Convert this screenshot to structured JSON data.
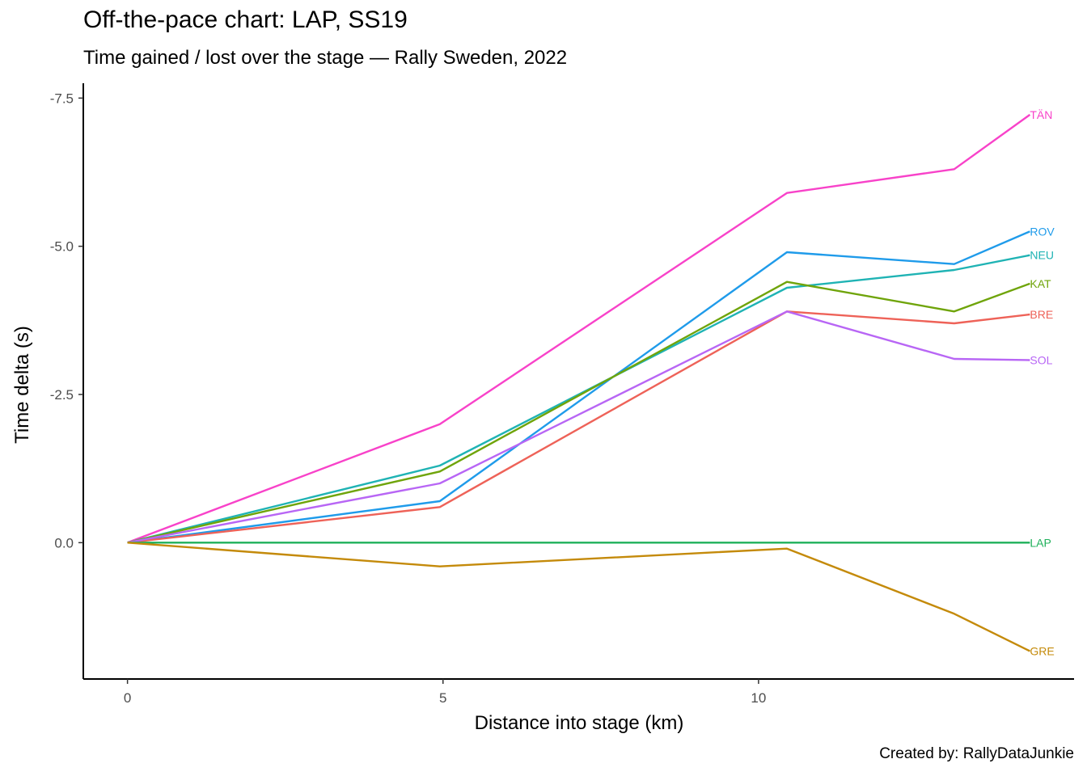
{
  "chart_data": {
    "type": "line",
    "title": "Off-the-pace chart: LAP, SS19",
    "subtitle": "Time gained / lost over the stage — Rally Sweden, 2022",
    "caption": "Created by: RallyDataJunkie",
    "xlabel": "Distance into stage (km)",
    "ylabel": "Time delta (s)",
    "x_ticks": [
      0,
      5,
      10
    ],
    "x_tick_labels": [
      "0",
      "5",
      "10"
    ],
    "y_ticks": [
      -7.5,
      -5.0,
      -2.5,
      0.0
    ],
    "y_tick_labels": [
      "-7.5",
      "-5.0",
      "-2.5",
      "0.0"
    ],
    "y_reversed": true,
    "xlim": [
      -0.7,
      15.0
    ],
    "ylim": [
      -7.75,
      2.3
    ],
    "grid": false,
    "legend": "end-of-line labels",
    "x": [
      0,
      4.95,
      10.45,
      13.1,
      14.3
    ],
    "series": [
      {
        "name": "TÄN",
        "color": "#F842C9",
        "values": [
          0,
          -2.0,
          -5.9,
          -6.3,
          -7.22
        ]
      },
      {
        "name": "ROV",
        "color": "#1F9BEA",
        "values": [
          0,
          -0.7,
          -4.9,
          -4.7,
          -5.25
        ]
      },
      {
        "name": "NEU",
        "color": "#1FB3B4",
        "values": [
          0,
          -1.3,
          -4.3,
          -4.6,
          -4.85
        ]
      },
      {
        "name": "KAT",
        "color": "#6FA40A",
        "values": [
          0,
          -1.2,
          -4.4,
          -3.9,
          -4.37
        ]
      },
      {
        "name": "BRE",
        "color": "#EE6258",
        "values": [
          0,
          -0.6,
          -3.9,
          -3.7,
          -3.85
        ]
      },
      {
        "name": "SOL",
        "color": "#B866F5",
        "values": [
          0,
          -1.0,
          -3.9,
          -3.1,
          -3.08
        ]
      },
      {
        "name": "LAP",
        "color": "#1EB05A",
        "values": [
          0,
          0.0,
          0.0,
          0.0,
          0.0
        ]
      },
      {
        "name": "GRE",
        "color": "#C48A0A",
        "values": [
          0,
          0.4,
          0.1,
          1.2,
          1.83
        ]
      }
    ]
  }
}
